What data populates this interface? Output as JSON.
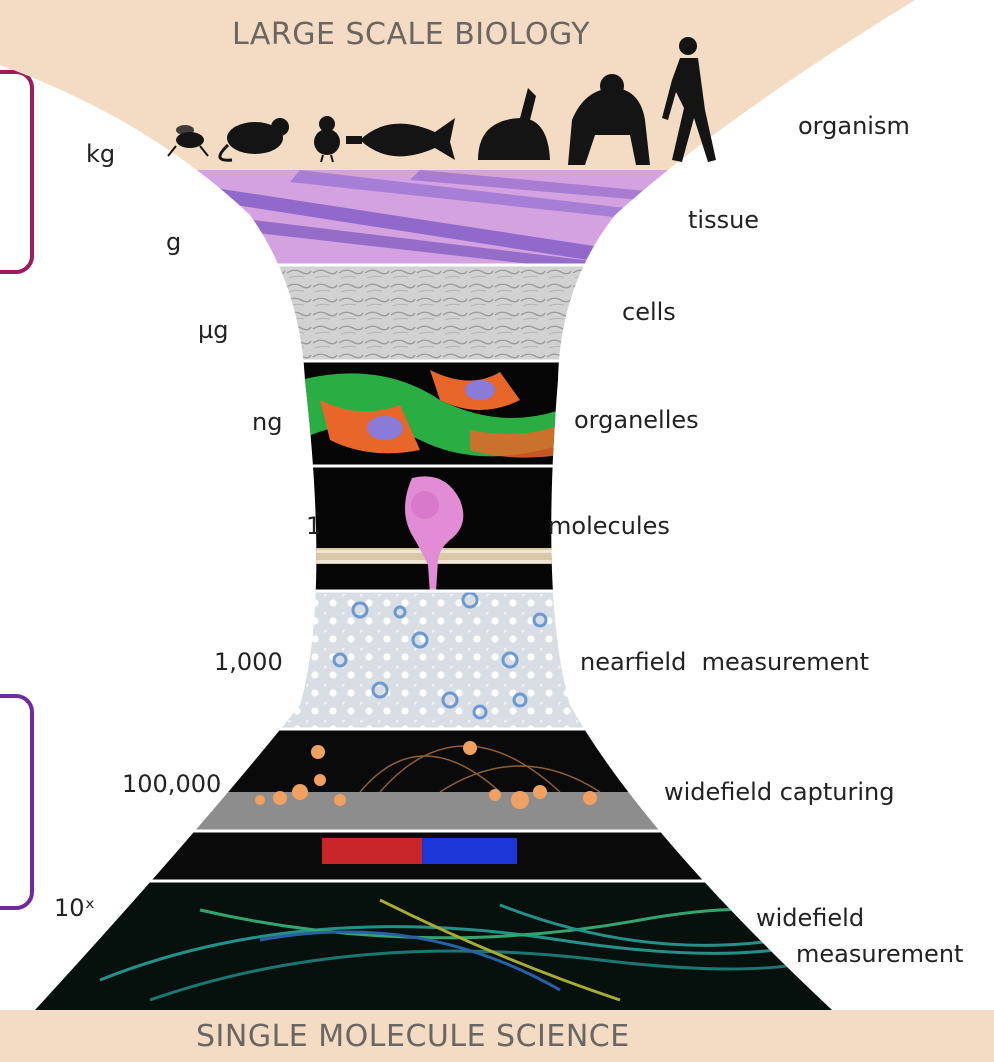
{
  "top_banner": "LARGE SCALE BIOLOGY",
  "bottom_banner": "SINGLE MOLECULE SCIENCE",
  "left_scale": [
    "kg",
    "g",
    "µg",
    "ng",
    "1",
    "1,000",
    "100,000",
    "10ˣ"
  ],
  "right_levels": [
    "organism",
    "tissue",
    "cells",
    "organelles",
    "molecules",
    "nearfield  measurement",
    "widefield capturing",
    "widefield",
    "measurement"
  ],
  "organisms": [
    "fly-icon",
    "mouse-icon",
    "chick-icon",
    "fish-icon",
    "rabbit-icon",
    "gorilla-icon",
    "human-icon"
  ],
  "colors": {
    "band": "#f4dcc4",
    "box_top_border": "#9b1b5e",
    "box_bottom_border": "#6f2b9e",
    "tissue": "#c58ad8",
    "cells": "#cfcfcf",
    "organelles_green": "#2fc14a",
    "organelles_orange": "#e8662a",
    "molecule_pink": "#e38cd6",
    "nearfield": "#d7dbe3",
    "particles": "#f0a060",
    "red_bar": "#c8262a",
    "blue_bar": "#1d36d8",
    "filaments": "#2aa8a0"
  }
}
